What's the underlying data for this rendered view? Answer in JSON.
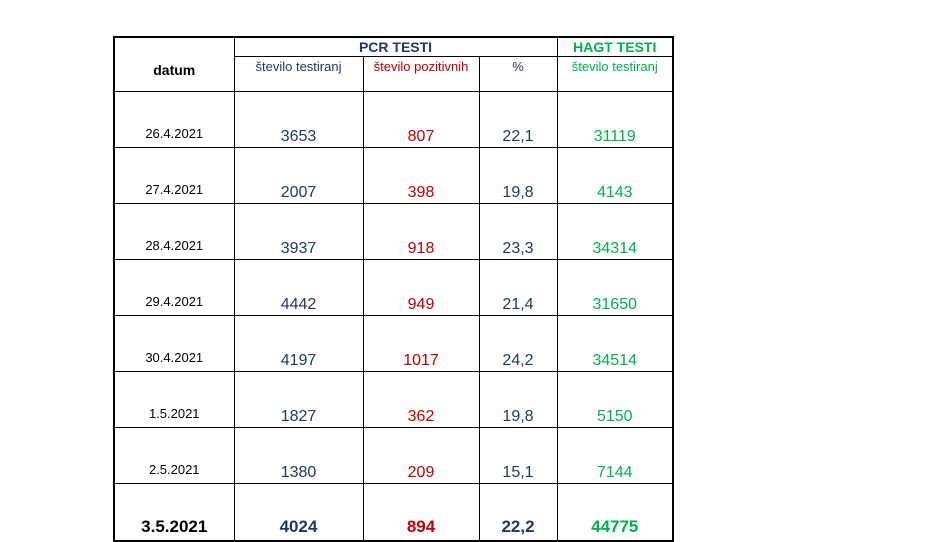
{
  "header": {
    "datum": "datum",
    "pcr_title": "PCR TESTI",
    "hagt_title": "HAGT TESTI",
    "pcr_columns": [
      "število testiranj",
      "število pozitivnih",
      "%"
    ],
    "hagt_columns": [
      "število testiranj"
    ]
  },
  "colors": {
    "tested": "#1f3864",
    "positive": "#c00000",
    "percent": "#1f3864",
    "hagt": "#00b050"
  },
  "rows": [
    {
      "date": "26.4.2021",
      "pcr_tested": "3653",
      "pcr_positive": "807",
      "percent": "22,1",
      "hagt_tested": "31119"
    },
    {
      "date": "27.4.2021",
      "pcr_tested": "2007",
      "pcr_positive": "398",
      "percent": "19,8",
      "hagt_tested": "4143"
    },
    {
      "date": "28.4.2021",
      "pcr_tested": "3937",
      "pcr_positive": "918",
      "percent": "23,3",
      "hagt_tested": "34314"
    },
    {
      "date": "29.4.2021",
      "pcr_tested": "4442",
      "pcr_positive": "949",
      "percent": "21,4",
      "hagt_tested": "31650"
    },
    {
      "date": "30.4.2021",
      "pcr_tested": "4197",
      "pcr_positive": "1017",
      "percent": "24,2",
      "hagt_tested": "34514"
    },
    {
      "date": "1.5.2021",
      "pcr_tested": "1827",
      "pcr_positive": "362",
      "percent": "19,8",
      "hagt_tested": "5150"
    },
    {
      "date": "2.5.2021",
      "pcr_tested": "1380",
      "pcr_positive": "209",
      "percent": "15,1",
      "hagt_tested": "7144"
    },
    {
      "date": "3.5.2021",
      "pcr_tested": "4024",
      "pcr_positive": "894",
      "percent": "22,2",
      "hagt_tested": "44775"
    }
  ]
}
